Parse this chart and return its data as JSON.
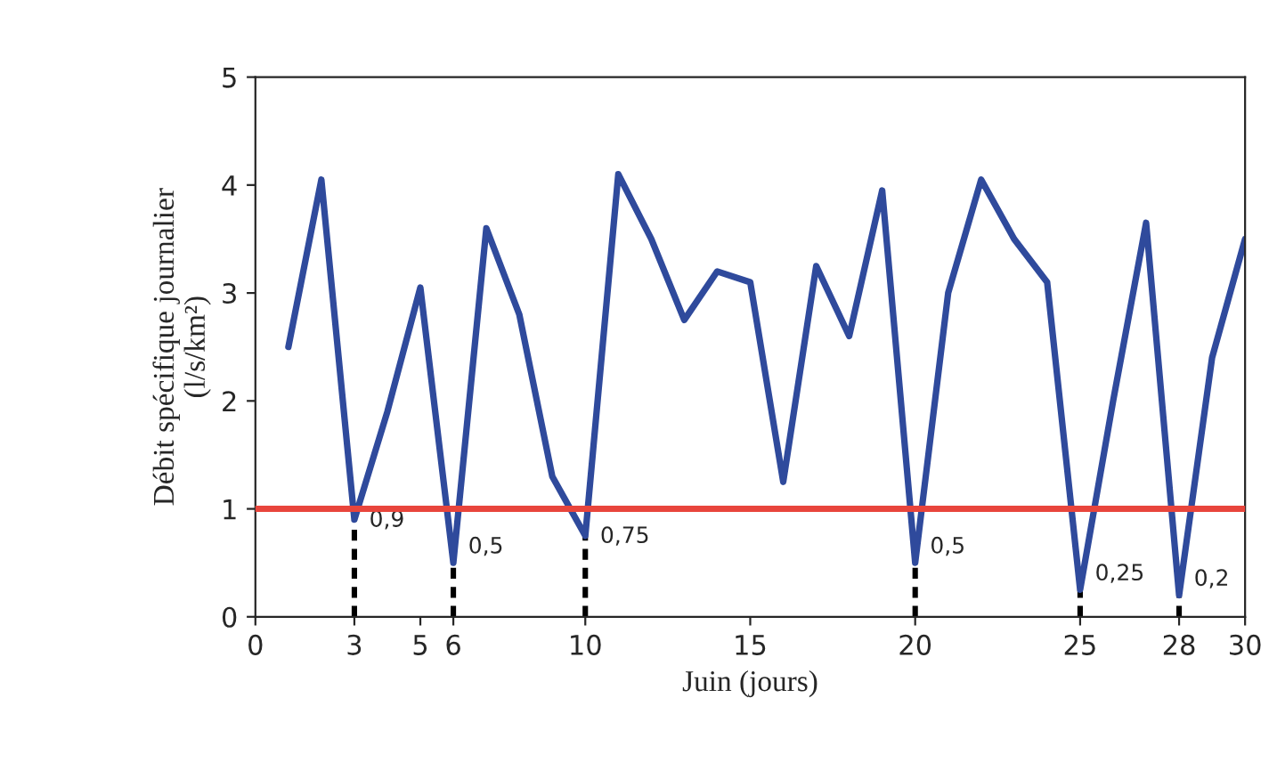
{
  "chart_data": {
    "type": "line",
    "xlabel": "Juin (jours)",
    "ylabel": "Débit spécifique journalier\n(l/s/km²)",
    "x": [
      1,
      2,
      3,
      4,
      5,
      6,
      7,
      8,
      9,
      10,
      11,
      12,
      13,
      14,
      15,
      16,
      17,
      18,
      19,
      20,
      21,
      22,
      23,
      24,
      25,
      26,
      27,
      28,
      29,
      30
    ],
    "series": [
      {
        "color": "#2f4a9c",
        "values": [
          2.5,
          4.05,
          0.9,
          1.9,
          3.05,
          0.5,
          3.6,
          2.8,
          1.3,
          0.75,
          4.1,
          3.5,
          2.75,
          3.2,
          3.1,
          1.25,
          3.25,
          2.6,
          3.95,
          0.5,
          3.0,
          4.05,
          3.5,
          3.1,
          0.25,
          2.0,
          3.65,
          0.2,
          2.4,
          3.5
        ],
        "value_labels": [
          null,
          null,
          "0,9",
          null,
          null,
          "0,5",
          null,
          null,
          null,
          "0,75",
          null,
          null,
          null,
          null,
          null,
          null,
          null,
          null,
          null,
          "0,5",
          null,
          null,
          null,
          null,
          "0,25",
          null,
          null,
          "0,2",
          null,
          null
        ]
      }
    ],
    "xlim": [
      0,
      30
    ],
    "xticks": [
      0,
      3,
      5,
      6,
      10,
      15,
      20,
      25,
      28,
      30
    ],
    "ylim": [
      0,
      5
    ],
    "yticks": [
      0,
      1,
      2,
      3,
      4,
      5
    ],
    "ref_lines": [
      {
        "axis": "y",
        "value": 1,
        "color": "#e8453c",
        "line_style": "solid"
      }
    ],
    "grid": false,
    "legend": false,
    "marker": "none",
    "line_style": "solid"
  }
}
